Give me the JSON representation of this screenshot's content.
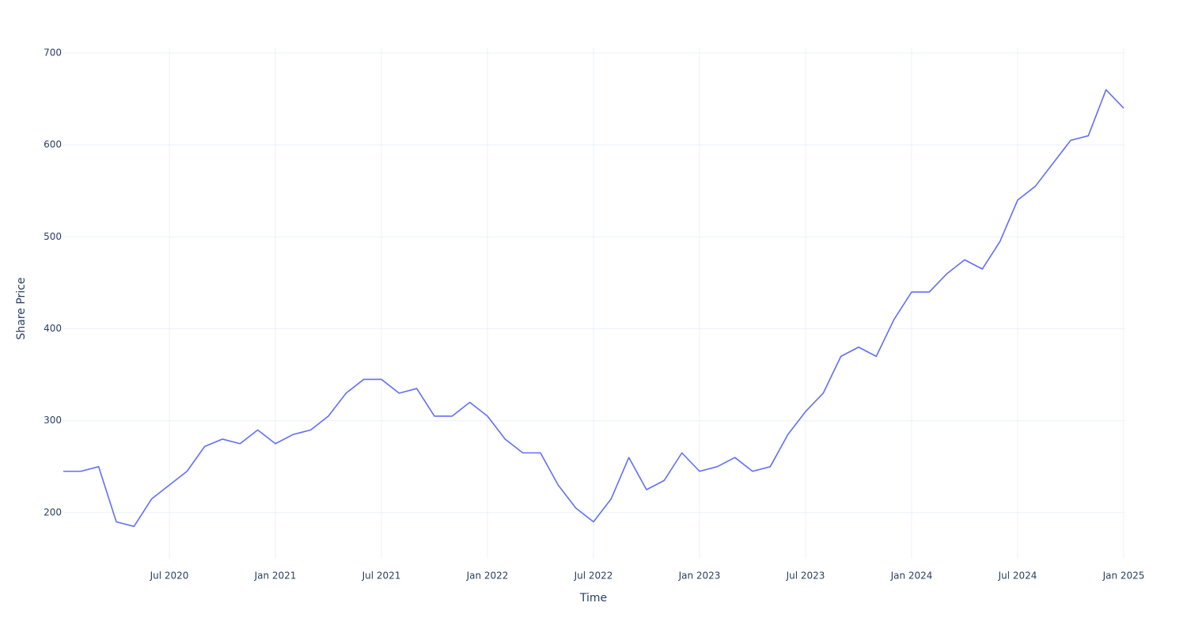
{
  "chart_data": {
    "type": "line",
    "x_label": "Time",
    "y_label": "Share Price",
    "x": [
      "2020-01",
      "2020-02",
      "2020-03",
      "2020-04",
      "2020-05",
      "2020-06",
      "2020-07",
      "2020-08",
      "2020-09",
      "2020-10",
      "2020-11",
      "2020-12",
      "2021-01",
      "2021-02",
      "2021-03",
      "2021-04",
      "2021-05",
      "2021-06",
      "2021-07",
      "2021-08",
      "2021-09",
      "2021-10",
      "2021-11",
      "2021-12",
      "2022-01",
      "2022-02",
      "2022-03",
      "2022-04",
      "2022-05",
      "2022-06",
      "2022-07",
      "2022-08",
      "2022-09",
      "2022-10",
      "2022-11",
      "2022-12",
      "2023-01",
      "2023-02",
      "2023-03",
      "2023-04",
      "2023-05",
      "2023-06",
      "2023-07",
      "2023-08",
      "2023-09",
      "2023-10",
      "2023-11",
      "2023-12",
      "2024-01",
      "2024-02",
      "2024-03",
      "2024-04",
      "2024-05",
      "2024-06",
      "2024-07",
      "2024-08",
      "2024-09",
      "2024-10",
      "2024-11",
      "2024-12",
      "2025-01"
    ],
    "series": [
      {
        "color": "#636efa",
        "values": [
          245,
          245,
          250,
          190,
          185,
          215,
          230,
          245,
          272,
          280,
          275,
          290,
          275,
          285,
          290,
          305,
          330,
          345,
          345,
          330,
          335,
          305,
          305,
          320,
          305,
          280,
          265,
          265,
          230,
          205,
          190,
          215,
          260,
          225,
          235,
          265,
          245,
          250,
          260,
          245,
          250,
          285,
          310,
          330,
          370,
          380,
          370,
          410,
          440,
          440,
          460,
          475,
          465,
          495,
          540,
          555,
          580,
          605,
          610,
          660,
          640
        ]
      }
    ],
    "xlim": [
      "2020-01",
      "2025-01"
    ],
    "xticks": [
      {
        "value": "2020-07",
        "label": "Jul 2020"
      },
      {
        "value": "2021-01",
        "label": "Jan 2021"
      },
      {
        "value": "2021-07",
        "label": "Jul 2021"
      },
      {
        "value": "2022-01",
        "label": "Jan 2022"
      },
      {
        "value": "2022-07",
        "label": "Jul 2022"
      },
      {
        "value": "2023-01",
        "label": "Jan 2023"
      },
      {
        "value": "2023-07",
        "label": "Jul 2023"
      },
      {
        "value": "2024-01",
        "label": "Jan 2024"
      },
      {
        "value": "2024-07",
        "label": "Jul 2024"
      },
      {
        "value": "2025-01",
        "label": "Jan 2025"
      }
    ],
    "ylim": [
      150,
      706
    ],
    "yticks": [
      200,
      300,
      400,
      500,
      600,
      700
    ],
    "grid": true
  }
}
